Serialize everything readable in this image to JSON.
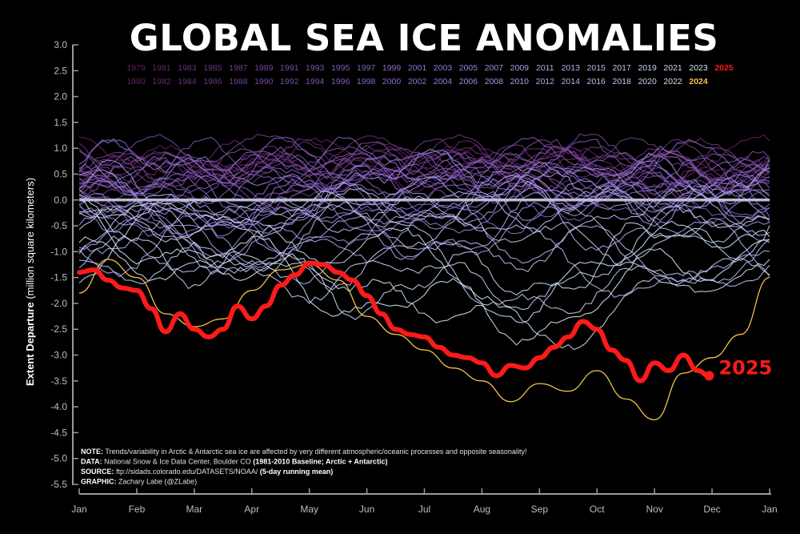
{
  "chart_data": {
    "type": "line",
    "title": "GLOBAL SEA ICE ANOMALIES",
    "ylabel_bold": "Extent Departure",
    "ylabel_rest": " (million square kilometers)",
    "ylim": [
      -5.5,
      3.0
    ],
    "yticks": [
      "3.0",
      "2.5",
      "2.0",
      "1.5",
      "1.0",
      "0.5",
      "0.0",
      "-0.5",
      "-1.0",
      "-1.5",
      "-2.0",
      "-2.5",
      "-3.0",
      "-3.5",
      "-4.0",
      "-4.5",
      "-5.0",
      "-5.5"
    ],
    "xticks": [
      "Jan",
      "Feb",
      "Mar",
      "Apr",
      "May",
      "Jun",
      "Jul",
      "Aug",
      "Sep",
      "Oct",
      "Nov",
      "Dec",
      "Jan"
    ],
    "baseline": 0.0,
    "legend_row1": [
      "1979",
      "1981",
      "1983",
      "1985",
      "1987",
      "1989",
      "1991",
      "1993",
      "1995",
      "1997",
      "1999",
      "2001",
      "2003",
      "2005",
      "2007",
      "2009",
      "2011",
      "2013",
      "2015",
      "2017",
      "2019",
      "2021",
      "2023",
      "2025"
    ],
    "legend_row2": [
      "1980",
      "1982",
      "1984",
      "1986",
      "1988",
      "1990",
      "1992",
      "1994",
      "1996",
      "1998",
      "2000",
      "2002",
      "2004",
      "2006",
      "2008",
      "2010",
      "2012",
      "2014",
      "2016",
      "2018",
      "2020",
      "2022",
      "2024"
    ],
    "colors": {
      "early": "#5e1f5e",
      "mid": "#8e6fd6",
      "late": "#cfe6f7",
      "y2024": "#f2c14e",
      "y2025": "#ff1a1a",
      "baseline": "#bcbcd6"
    },
    "series_2025": {
      "name": "2025",
      "x_month": [
        0,
        0.25,
        0.5,
        0.75,
        1.0,
        1.25,
        1.5,
        1.75,
        2.0,
        2.25,
        2.5,
        2.75,
        3.0,
        3.25,
        3.5,
        3.75,
        4.0,
        4.25,
        4.5,
        4.75,
        5.0,
        5.25,
        5.5,
        5.75,
        6.0,
        6.25,
        6.5,
        6.75,
        7.0,
        7.25,
        7.5,
        7.75,
        8.0,
        8.25,
        8.5,
        8.75,
        9.0,
        9.25,
        9.5,
        9.75,
        10.0,
        10.25,
        10.5,
        10.75,
        10.95
      ],
      "values": [
        -1.4,
        -1.35,
        -1.55,
        -1.7,
        -1.75,
        -2.1,
        -2.55,
        -2.2,
        -2.5,
        -2.65,
        -2.5,
        -2.05,
        -2.3,
        -2.05,
        -1.65,
        -1.45,
        -1.22,
        -1.25,
        -1.4,
        -1.55,
        -1.85,
        -2.2,
        -2.5,
        -2.6,
        -2.65,
        -2.85,
        -3.0,
        -3.05,
        -3.15,
        -3.4,
        -3.2,
        -3.25,
        -3.05,
        -2.85,
        -2.65,
        -2.35,
        -2.5,
        -2.9,
        -3.1,
        -3.5,
        -3.15,
        -3.3,
        -3.0,
        -3.3,
        -3.4
      ]
    },
    "series_2024": {
      "name": "2024",
      "x_month": [
        0,
        0.5,
        1.0,
        1.5,
        2.0,
        2.5,
        3.0,
        3.5,
        4.0,
        4.5,
        5.0,
        5.5,
        6.0,
        6.5,
        7.0,
        7.5,
        8.0,
        8.5,
        9.0,
        9.5,
        10.0,
        10.5,
        11.0,
        11.5,
        12.0
      ],
      "values": [
        -1.8,
        -1.15,
        -1.5,
        -2.2,
        -2.45,
        -2.3,
        -1.75,
        -1.35,
        -1.25,
        -1.55,
        -2.25,
        -2.6,
        -2.9,
        -3.25,
        -3.5,
        -3.9,
        -3.55,
        -3.7,
        -3.3,
        -3.85,
        -4.25,
        -3.35,
        -3.05,
        -2.6,
        -1.5
      ]
    },
    "background_series_count": 45,
    "end_label": "2025"
  },
  "notes": [
    {
      "label": "NOTE:",
      "text": " Trends/variability in Arctic & Antarctic sea ice are affected by very different atmospheric/oceanic processes and opposite seasonality!",
      "bold_tail": ""
    },
    {
      "label": "DATA:",
      "text": " National Snow & Ice Data Center, Boulder CO ",
      "bold_tail": "(1981-2010 Baseline; Arctic + Antarctic)"
    },
    {
      "label": "SOURCE:",
      "text": " ftp://sidads.colorado.edu/DATASETS/NOAA/ ",
      "bold_tail": "(5-day running mean)"
    },
    {
      "label": "GRAPHIC:",
      "text": " Zachary Labe (@ZLabe)",
      "bold_tail": ""
    }
  ]
}
